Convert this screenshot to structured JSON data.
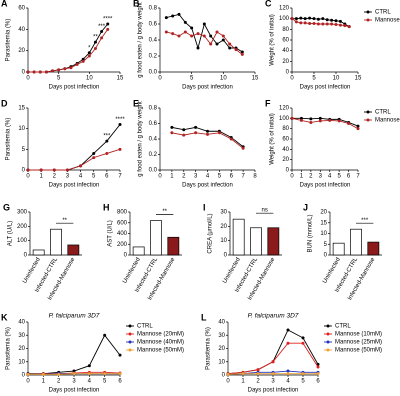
{
  "chart_data": [
    {
      "type": "line",
      "panel": "A",
      "xlabel": "Days post infection",
      "ylabel": "Parasitemia (%)",
      "x": [
        0,
        1,
        2,
        3,
        4,
        5,
        6,
        7,
        8,
        9,
        10,
        11,
        12,
        13
      ],
      "xlim": [
        0,
        15
      ],
      "xticks": [
        0,
        5,
        10,
        15
      ],
      "ylim": [
        0,
        60
      ],
      "yticks": [
        0,
        20,
        40,
        60
      ],
      "series": [
        {
          "color": "#000000",
          "values": [
            0,
            0,
            0,
            0,
            1,
            2,
            3,
            5,
            8,
            12,
            18,
            28,
            38,
            45
          ]
        },
        {
          "color": "#b22222",
          "values": [
            0,
            0,
            0,
            0,
            1,
            2,
            3,
            4,
            7,
            10,
            15,
            22,
            32,
            40
          ]
        }
      ],
      "annotations": [
        {
          "text": "*",
          "x": 10
        },
        {
          "text": "**",
          "x": 11
        },
        {
          "text": "***",
          "x": 12
        },
        {
          "text": "****",
          "x": 13
        }
      ]
    },
    {
      "type": "line",
      "panel": "B",
      "xlabel": "Days post infection",
      "ylabel": "g food eaten / g body weight",
      "x": [
        1,
        2,
        3,
        4,
        5,
        6,
        7,
        8,
        9,
        10,
        11,
        12,
        13
      ],
      "xlim": [
        0,
        15
      ],
      "xticks": [
        0,
        5,
        10,
        15
      ],
      "ylim": [
        0,
        0.8
      ],
      "yticks": [
        {
          "value": 0,
          "label": "0.0"
        },
        0.2,
        0.4,
        0.6,
        0.8
      ],
      "series": [
        {
          "color": "#000000",
          "values": [
            0.68,
            0.7,
            0.72,
            0.62,
            0.55,
            0.3,
            0.6,
            0.45,
            0.35,
            0.4,
            0.3,
            0.3,
            0.25
          ]
        },
        {
          "color": "#b22222",
          "values": [
            0.5,
            0.48,
            0.45,
            0.5,
            0.45,
            0.48,
            0.45,
            0.35,
            0.5,
            0.45,
            0.35,
            0.28,
            0.22
          ]
        }
      ]
    },
    {
      "type": "line",
      "panel": "C",
      "xlabel": "Days post infection",
      "ylabel": "Weight (% of initial)",
      "x": [
        0,
        1,
        2,
        3,
        4,
        5,
        6,
        7,
        8,
        9,
        10,
        11,
        12,
        13
      ],
      "xlim": [
        0,
        15
      ],
      "xticks": [
        0,
        5,
        10,
        15
      ],
      "ylim": [
        0,
        120
      ],
      "yticks": [
        0,
        20,
        40,
        60,
        80,
        100,
        120
      ],
      "legend": "outside-right",
      "series": [
        {
          "name": "CTRL",
          "color": "#000000",
          "values": [
            100,
            100,
            101,
            100,
            101,
            100,
            99,
            100,
            98,
            97,
            96,
            95,
            90,
            85
          ]
        },
        {
          "name": "Mannose",
          "color": "#b22222",
          "values": [
            100,
            94,
            92,
            92,
            91,
            91,
            90,
            90,
            90,
            90,
            89,
            88,
            87,
            85
          ]
        }
      ]
    },
    {
      "type": "line",
      "panel": "D",
      "xlabel": "Days post infection",
      "ylabel": "Parasitemia (%)",
      "x": [
        0,
        1,
        2,
        3,
        4,
        5,
        6,
        7
      ],
      "xlim": [
        0,
        7
      ],
      "xticks": [
        0,
        1,
        2,
        3,
        4,
        5,
        6,
        7
      ],
      "ylim": [
        0,
        15
      ],
      "yticks": [
        0,
        5,
        10,
        15
      ],
      "series": [
        {
          "color": "#000000",
          "values": [
            0,
            0,
            0,
            0,
            1,
            4,
            7,
            11
          ]
        },
        {
          "color": "#b22222",
          "values": [
            0,
            0,
            0,
            0,
            1,
            3,
            4,
            5
          ]
        }
      ],
      "annotations": [
        {
          "text": "***",
          "x": 6
        },
        {
          "text": "****",
          "x": 7
        }
      ]
    },
    {
      "type": "line",
      "panel": "E",
      "xlabel": "Days post infection",
      "ylabel": "g food eaten / g body weight",
      "x": [
        1,
        2,
        3,
        4,
        5,
        6,
        7
      ],
      "xlim": [
        0,
        8
      ],
      "xticks": [
        0,
        1,
        2,
        3,
        4,
        5,
        6,
        7,
        8
      ],
      "ylim": [
        0,
        0.8
      ],
      "yticks": [
        {
          "value": 0,
          "label": "0.0"
        },
        0.2,
        0.4,
        0.6,
        0.8
      ],
      "series": [
        {
          "color": "#000000",
          "values": [
            0.55,
            0.52,
            0.55,
            0.5,
            0.5,
            0.42,
            0.3
          ]
        },
        {
          "color": "#b22222",
          "values": [
            0.48,
            0.45,
            0.48,
            0.46,
            0.48,
            0.4,
            0.28
          ]
        }
      ]
    },
    {
      "type": "line",
      "panel": "F",
      "xlabel": "Days post infection",
      "ylabel": "Weight (% of initial)",
      "x": [
        0,
        1,
        2,
        3,
        4,
        5,
        6,
        7
      ],
      "xlim": [
        0,
        7
      ],
      "xticks": [
        0,
        1,
        2,
        3,
        4,
        5,
        6,
        7
      ],
      "ylim": [
        0,
        120
      ],
      "yticks": [
        0,
        20,
        40,
        60,
        80,
        100,
        120
      ],
      "legend": "outside-right",
      "series": [
        {
          "name": "CTRL",
          "color": "#000000",
          "values": [
            100,
            100,
            99,
            100,
            98,
            98,
            92,
            85
          ]
        },
        {
          "name": "Mannose",
          "color": "#b22222",
          "values": [
            100,
            96,
            92,
            95,
            96,
            95,
            90,
            80
          ]
        }
      ]
    },
    {
      "type": "bar",
      "panel": "G",
      "ylabel": "ALT (U/L)",
      "categories": [
        "Uninfected",
        "Infected-CTRL",
        "Infected-Mannose"
      ],
      "values": [
        35,
        180,
        70
      ],
      "colors": [
        "#ffffff",
        "#ffffff",
        "#8b1a1a"
      ],
      "ylim": [
        0,
        300
      ],
      "yticks": [
        0,
        100,
        200,
        300
      ],
      "annotations": [
        "**"
      ]
    },
    {
      "type": "bar",
      "panel": "H",
      "ylabel": "AST (U/L)",
      "categories": [
        "Uninfected",
        "Infected-CTRL",
        "Infected-Mannose"
      ],
      "values": [
        150,
        640,
        330
      ],
      "colors": [
        "#ffffff",
        "#ffffff",
        "#8b1a1a"
      ],
      "ylim": [
        0,
        800
      ],
      "yticks": [
        0,
        200,
        400,
        600,
        800
      ],
      "annotations": [
        "**"
      ]
    },
    {
      "type": "bar",
      "panel": "I",
      "ylabel": "CREA (μmol/L)",
      "categories": [
        "Uninfected",
        "Infected-CTRL",
        "Infected-Mannose"
      ],
      "values": [
        25,
        19,
        19
      ],
      "colors": [
        "#ffffff",
        "#ffffff",
        "#8b1a1a"
      ],
      "ylim": [
        0,
        30
      ],
      "yticks": [
        0,
        10,
        20,
        30
      ],
      "annotations": [
        "ns"
      ]
    },
    {
      "type": "bar",
      "panel": "J",
      "ylabel": "BUN (mmol/L)",
      "categories": [
        "Uninfected",
        "Infected-CTRL",
        "Infected-Mannose"
      ],
      "values": [
        5.5,
        12,
        6
      ],
      "colors": [
        "#ffffff",
        "#ffffff",
        "#8b1a1a"
      ],
      "ylim": [
        0,
        20
      ],
      "yticks": [
        0,
        5,
        10,
        15,
        20
      ],
      "annotations": [
        "***"
      ]
    },
    {
      "type": "line",
      "panel": "K",
      "title": "P. falciparum 3D7",
      "xlabel": "Days post infection",
      "ylabel": "Parasitemia (%)",
      "x": [
        0,
        1,
        2,
        3,
        4,
        5,
        6
      ],
      "xlim": [
        0,
        6
      ],
      "xticks": [
        0,
        1,
        2,
        3,
        4,
        5,
        6
      ],
      "ylim": [
        0,
        40
      ],
      "yticks": [
        0,
        10,
        20,
        30,
        40
      ],
      "legend": "outside-right",
      "series": [
        {
          "name": "CTRL",
          "color": "#000000",
          "values": [
            1,
            1,
            2,
            3,
            7,
            30,
            15
          ]
        },
        {
          "name": "Mannose (20mM)",
          "color": "#e02020",
          "values": [
            0.5,
            1,
            1,
            1.5,
            2,
            2,
            1.5
          ]
        },
        {
          "name": "Mannose (40mM)",
          "color": "#2030c0",
          "values": [
            0.5,
            0.5,
            1,
            1,
            1,
            1,
            1
          ]
        },
        {
          "name": "Mannose (50mM)",
          "color": "#f0a030",
          "values": [
            0.5,
            0.5,
            0.5,
            1,
            1,
            1,
            1
          ]
        }
      ]
    },
    {
      "type": "line",
      "panel": "L",
      "title": "P. falciparum 3D7",
      "xlabel": "Days post infection",
      "ylabel": "Parasitemia (%)",
      "x": [
        0,
        1,
        2,
        3,
        4,
        5,
        6
      ],
      "xlim": [
        0,
        6
      ],
      "xticks": [
        0,
        1,
        2,
        3,
        4,
        5,
        6
      ],
      "ylim": [
        0,
        40
      ],
      "yticks": [
        0,
        10,
        20,
        30,
        40
      ],
      "legend": "outside-right",
      "series": [
        {
          "name": "CTRL",
          "color": "#000000",
          "values": [
            1,
            2,
            4,
            10,
            34,
            28,
            8
          ]
        },
        {
          "name": "Mannose (10mM)",
          "color": "#e02020",
          "values": [
            1,
            2,
            4,
            10,
            24,
            24,
            6
          ]
        },
        {
          "name": "Mannose (25mM)",
          "color": "#2030c0",
          "values": [
            0.5,
            1,
            2,
            2,
            3,
            2,
            2
          ]
        },
        {
          "name": "Mannose (50mM)",
          "color": "#f0a030",
          "values": [
            0.5,
            1,
            1,
            1,
            1,
            1,
            1
          ]
        }
      ]
    }
  ]
}
